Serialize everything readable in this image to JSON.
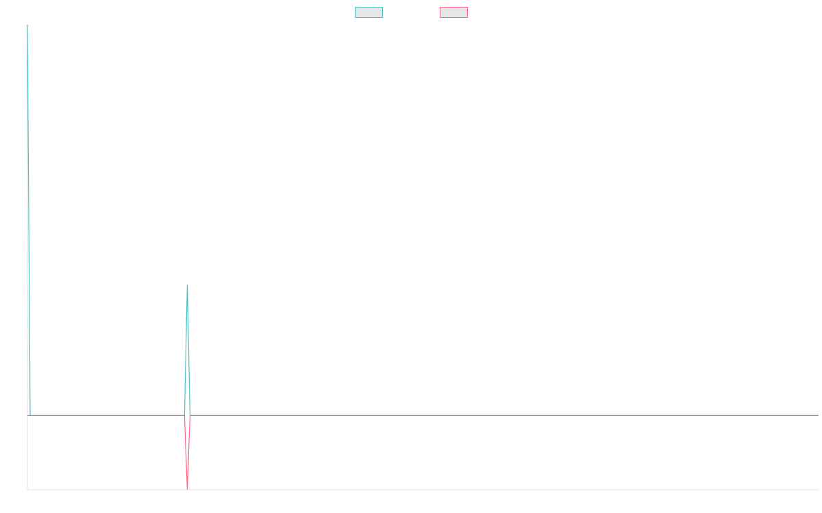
{
  "chart_data": {
    "type": "line",
    "x": [
      0,
      1,
      57,
      58,
      59,
      287
    ],
    "xlim": [
      0,
      287
    ],
    "ylim": [
      -19,
      100
    ],
    "legend": "top",
    "series": [
      {
        "color": "#4bc0c0",
        "values": [
          100,
          0,
          0,
          33.5,
          0,
          0
        ]
      },
      {
        "color": "#ff6384",
        "values": [
          0,
          0,
          0,
          -19,
          0,
          0
        ]
      }
    ]
  }
}
